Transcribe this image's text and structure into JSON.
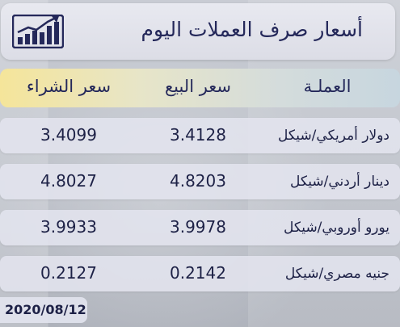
{
  "header": {
    "title": "أسعار صرف العملات اليوم",
    "icon": "chart-growth-icon"
  },
  "columns": {
    "currency": "العملـة",
    "sell": "سعر البيع",
    "buy": "سعر الشراء"
  },
  "rows": [
    {
      "currency": "دولار أمريكي/شيكل",
      "sell": "3.4128",
      "buy": "3.4099"
    },
    {
      "currency": "دينار أردني/شيكل",
      "sell": "4.8203",
      "buy": "4.8027"
    },
    {
      "currency": "يورو أوروبي/شيكل",
      "sell": "3.9978",
      "buy": "3.9933"
    },
    {
      "currency": "جنيه مصري/شيكل",
      "sell": "0.2142",
      "buy": "0.2127"
    }
  ],
  "date": "2020/08/12",
  "colors": {
    "text": "#24285a",
    "header_bg": "#e3e4ec",
    "column_header_gradient": [
      "#f5e59a",
      "#c7d6df"
    ]
  }
}
